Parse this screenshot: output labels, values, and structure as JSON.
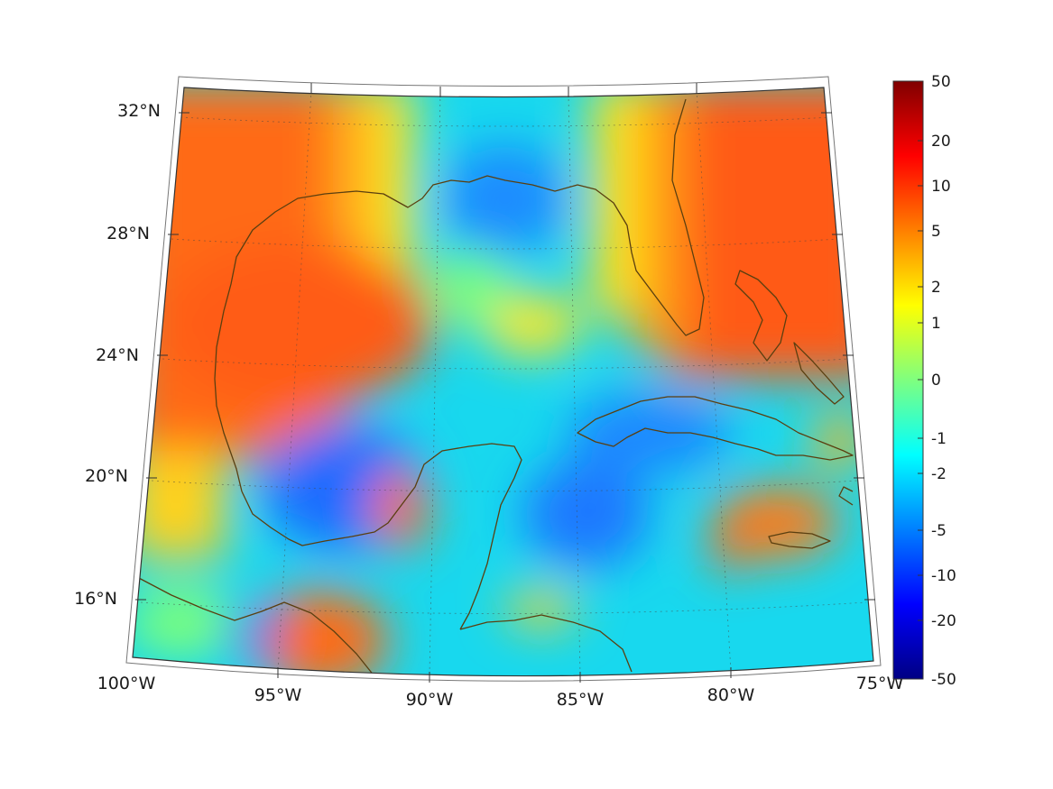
{
  "map": {
    "lat_labels": [
      "32°N",
      "28°N",
      "24°N",
      "20°N",
      "16°N"
    ],
    "lon_labels": [
      "100°W",
      "95°W",
      "90°W",
      "85°W",
      "80°W",
      "75°W"
    ],
    "extent": {
      "lon": [
        -100,
        -75
      ],
      "lat": [
        14,
        33
      ]
    },
    "projection": "conic",
    "coastline_color": "#5a3f10",
    "graticule": "dotted"
  },
  "colorbar": {
    "colormap": "jet",
    "ticks": [
      "50",
      "20",
      "10",
      "5",
      "2",
      "1",
      "0",
      "-1",
      "-2",
      "-5",
      "-10",
      "-20",
      "-50"
    ],
    "tick_values": [
      50,
      20,
      10,
      5,
      2,
      1,
      0,
      -1,
      -2,
      -5,
      -10,
      -20,
      -50
    ]
  }
}
